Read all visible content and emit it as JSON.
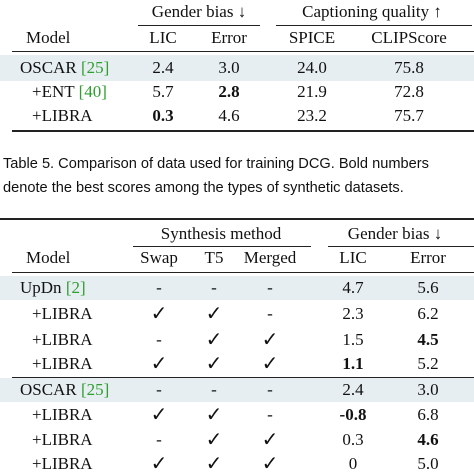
{
  "table_top": {
    "group_headers": [
      "Gender bias ↓",
      "Captioning quality ↑"
    ],
    "col_headers": [
      "Model",
      "LIC",
      "Error",
      "SPICE",
      "CLIPScore"
    ],
    "rows": [
      {
        "model": "OSCAR",
        "cite": "[25]",
        "values": [
          "2.4",
          "3.0",
          "24.0",
          "75.8"
        ],
        "bold": [
          false,
          false,
          false,
          false
        ]
      },
      {
        "model": "+ENT",
        "cite": "[40]",
        "values": [
          "5.7",
          "2.8",
          "21.9",
          "72.8"
        ],
        "bold": [
          false,
          true,
          false,
          false
        ]
      },
      {
        "model": "+LIBRA",
        "cite": "",
        "values": [
          "0.3",
          "4.6",
          "23.2",
          "75.7"
        ],
        "bold": [
          true,
          false,
          false,
          false
        ]
      }
    ]
  },
  "caption": {
    "line1": "Table 5. Comparison of data used for training DCG. Bold numbers",
    "line2": "denote the best scores among the types of synthetic datasets."
  },
  "table_bottom": {
    "group_headers": [
      "Synthesis method",
      "Gender bias ↓"
    ],
    "col_headers": [
      "Model",
      "Swap",
      "T5",
      "Merged",
      "LIC",
      "Error"
    ],
    "rows": [
      {
        "model": "UpDn",
        "cite": "[2]",
        "cells": [
          "-",
          "-",
          "-",
          "4.7",
          "5.6"
        ],
        "bold": [
          false,
          false,
          false,
          false,
          false
        ]
      },
      {
        "model": "+LIBRA",
        "cite": "",
        "cells": [
          "✓",
          "✓",
          "-",
          "2.3",
          "6.2"
        ],
        "bold": [
          false,
          false,
          false,
          false,
          false
        ]
      },
      {
        "model": "+LIBRA",
        "cite": "",
        "cells": [
          "-",
          "✓",
          "✓",
          "1.5",
          "4.5"
        ],
        "bold": [
          false,
          false,
          false,
          false,
          true
        ]
      },
      {
        "model": "+LIBRA",
        "cite": "",
        "cells": [
          "✓",
          "✓",
          "✓",
          "1.1",
          "5.2"
        ],
        "bold": [
          false,
          false,
          false,
          true,
          false
        ]
      },
      {
        "model": "OSCAR",
        "cite": "[25]",
        "cells": [
          "-",
          "-",
          "-",
          "2.4",
          "3.0"
        ],
        "bold": [
          false,
          false,
          false,
          false,
          false
        ]
      },
      {
        "model": "+LIBRA",
        "cite": "",
        "cells": [
          "✓",
          "✓",
          "-",
          "-0.8",
          "6.8"
        ],
        "bold": [
          false,
          false,
          false,
          true,
          false
        ]
      },
      {
        "model": "+LIBRA",
        "cite": "",
        "cells": [
          "-",
          "✓",
          "✓",
          "0.3",
          "4.6"
        ],
        "bold": [
          false,
          false,
          false,
          false,
          true
        ]
      },
      {
        "model": "+LIBRA",
        "cite": "",
        "cells": [
          "✓",
          "✓",
          "✓",
          "0",
          "5.0"
        ],
        "bold": [
          false,
          false,
          false,
          false,
          false
        ]
      }
    ]
  }
}
